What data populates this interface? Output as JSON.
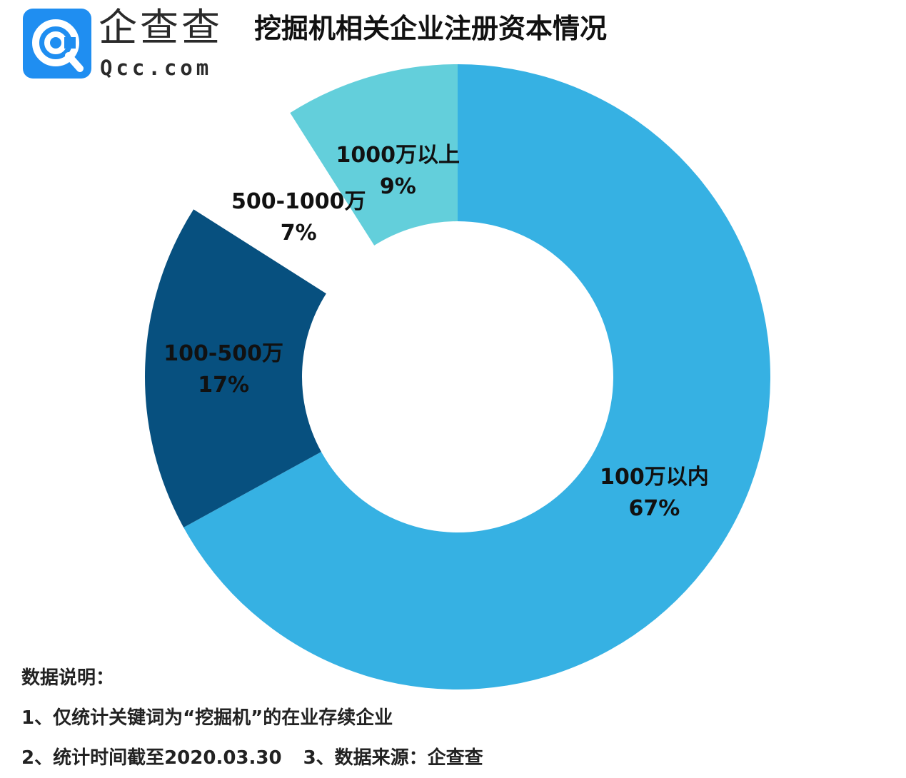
{
  "brand": {
    "name": "企查查",
    "domain": "Qcc.com",
    "logo_color": "#1f8ef1"
  },
  "chart_data": {
    "type": "pie",
    "title": "挖掘机相关企业注册资本情况",
    "donut": true,
    "start_angle": "12 o'clock",
    "direction": "clockwise",
    "slices": [
      {
        "label": "100万以内",
        "value": 67,
        "value_label": "67%",
        "color": "#36b1e3"
      },
      {
        "label": "100-500万",
        "value": 17,
        "value_label": "17%",
        "color": "#07507f"
      },
      {
        "label": "500-1000万",
        "value": 7,
        "value_label": "7%",
        "color": "#ffffff"
      },
      {
        "label": "1000万以上",
        "value": 9,
        "value_label": "9%",
        "color": "#63cfdb"
      }
    ]
  },
  "notes": {
    "heading": "数据说明：",
    "line1": "1、仅统计关键词为“挖掘机”的在业存续企业",
    "line2a": "2、统计时间截至2020.03.30",
    "line2b": "3、数据来源：企查查"
  }
}
